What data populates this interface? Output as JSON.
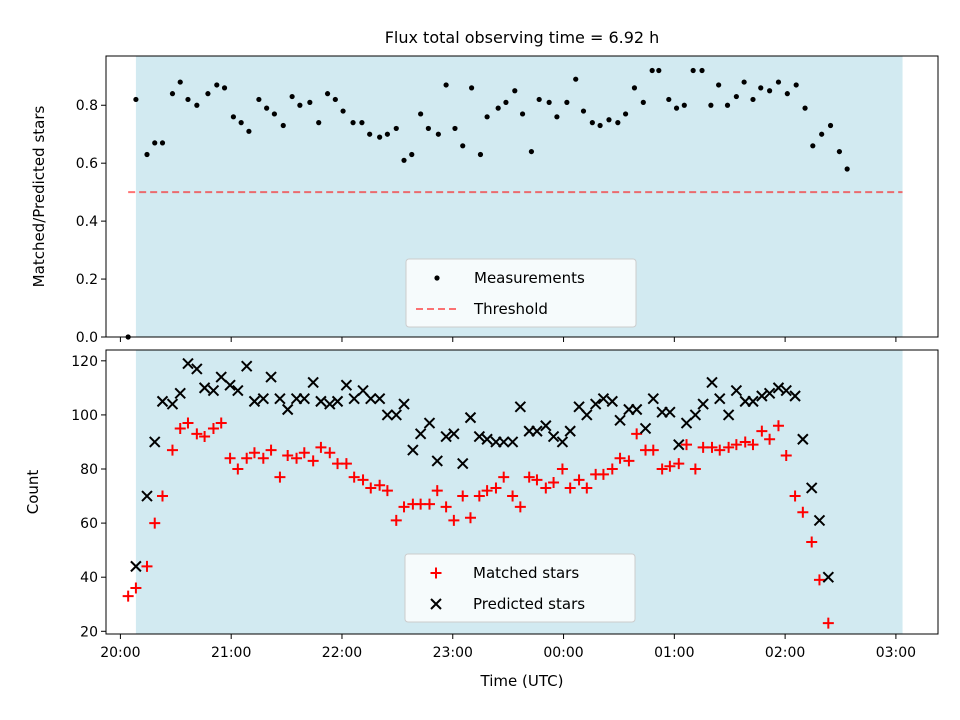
{
  "title": "Flux total observing time = 6.92 h",
  "colors": {
    "background_band": "#add8e6",
    "measurements": "#000000",
    "threshold": "#ff0000",
    "matched": "#ff0000",
    "predicted": "#000000"
  },
  "chart_data": [
    {
      "type": "scatter",
      "name": "ratio-panel",
      "ylabel": "Matched/Predicted stars",
      "xlim": [
        19.87,
        27.38
      ],
      "ylim": [
        0,
        0.97
      ],
      "yticks": [
        0.0,
        0.2,
        0.4,
        0.6,
        0.8
      ],
      "ytick_labels": [
        "0.0",
        "0.2",
        "0.4",
        "0.6",
        "0.8"
      ],
      "observing_window": [
        20.14,
        27.06
      ],
      "threshold": {
        "label": "Threshold",
        "value": 0.5,
        "x_range": [
          20.07,
          27.06
        ],
        "style": "dashed"
      },
      "legend": {
        "position": "lower center",
        "entries": [
          "Measurements",
          "Threshold"
        ]
      },
      "series": [
        {
          "name": "Measurements",
          "marker": "dot",
          "points": [
            [
              20.07,
              0.0
            ],
            [
              20.14,
              0.82
            ],
            [
              20.24,
              0.63
            ],
            [
              20.31,
              0.67
            ],
            [
              20.38,
              0.67
            ],
            [
              20.47,
              0.84
            ],
            [
              20.54,
              0.88
            ],
            [
              20.61,
              0.82
            ],
            [
              20.69,
              0.8
            ],
            [
              20.79,
              0.84
            ],
            [
              20.87,
              0.87
            ],
            [
              20.94,
              0.86
            ],
            [
              21.02,
              0.76
            ],
            [
              21.09,
              0.74
            ],
            [
              21.16,
              0.71
            ],
            [
              21.25,
              0.82
            ],
            [
              21.32,
              0.79
            ],
            [
              21.39,
              0.77
            ],
            [
              21.47,
              0.73
            ],
            [
              21.55,
              0.83
            ],
            [
              21.62,
              0.8
            ],
            [
              21.71,
              0.81
            ],
            [
              21.79,
              0.74
            ],
            [
              21.87,
              0.84
            ],
            [
              21.94,
              0.82
            ],
            [
              22.01,
              0.78
            ],
            [
              22.1,
              0.74
            ],
            [
              22.18,
              0.74
            ],
            [
              22.25,
              0.7
            ],
            [
              22.34,
              0.69
            ],
            [
              22.41,
              0.7
            ],
            [
              22.49,
              0.72
            ],
            [
              22.56,
              0.61
            ],
            [
              22.63,
              0.63
            ],
            [
              22.71,
              0.77
            ],
            [
              22.78,
              0.72
            ],
            [
              22.87,
              0.7
            ],
            [
              22.94,
              0.87
            ],
            [
              23.02,
              0.72
            ],
            [
              23.09,
              0.66
            ],
            [
              23.17,
              0.86
            ],
            [
              23.25,
              0.63
            ],
            [
              23.31,
              0.76
            ],
            [
              23.41,
              0.79
            ],
            [
              23.48,
              0.81
            ],
            [
              23.56,
              0.85
            ],
            [
              23.63,
              0.77
            ],
            [
              23.71,
              0.64
            ],
            [
              23.78,
              0.82
            ],
            [
              23.87,
              0.81
            ],
            [
              23.94,
              0.76
            ],
            [
              24.03,
              0.81
            ],
            [
              24.11,
              0.89
            ],
            [
              24.18,
              0.78
            ],
            [
              24.26,
              0.74
            ],
            [
              24.33,
              0.73
            ],
            [
              24.41,
              0.75
            ],
            [
              24.49,
              0.74
            ],
            [
              24.56,
              0.77
            ],
            [
              24.64,
              0.86
            ],
            [
              24.72,
              0.81
            ],
            [
              24.8,
              0.92
            ],
            [
              24.86,
              0.92
            ],
            [
              24.95,
              0.82
            ],
            [
              25.02,
              0.79
            ],
            [
              25.09,
              0.8
            ],
            [
              25.17,
              0.92
            ],
            [
              25.25,
              0.92
            ],
            [
              25.33,
              0.8
            ],
            [
              25.4,
              0.87
            ],
            [
              25.48,
              0.8
            ],
            [
              25.56,
              0.83
            ],
            [
              25.63,
              0.88
            ],
            [
              25.71,
              0.82
            ],
            [
              25.78,
              0.86
            ],
            [
              25.86,
              0.85
            ],
            [
              25.94,
              0.88
            ],
            [
              26.02,
              0.84
            ],
            [
              26.1,
              0.87
            ],
            [
              26.18,
              0.79
            ],
            [
              26.25,
              0.66
            ],
            [
              26.33,
              0.7
            ],
            [
              26.41,
              0.73
            ],
            [
              26.49,
              0.64
            ],
            [
              26.56,
              0.58
            ]
          ]
        }
      ]
    },
    {
      "type": "scatter",
      "name": "count-panel",
      "ylabel": "Count",
      "xlabel": "Time (UTC)",
      "xlim": [
        19.87,
        27.38
      ],
      "ylim": [
        19,
        124
      ],
      "yticks": [
        20,
        40,
        60,
        80,
        100,
        120
      ],
      "ytick_labels": [
        "20",
        "40",
        "60",
        "80",
        "100",
        "120"
      ],
      "xticks": [
        20,
        21,
        22,
        23,
        24,
        25,
        26,
        27
      ],
      "xtick_labels": [
        "20:00",
        "21:00",
        "22:00",
        "23:00",
        "00:00",
        "01:00",
        "02:00",
        "03:00"
      ],
      "observing_window": [
        20.14,
        27.06
      ],
      "legend": {
        "position": "lower center",
        "entries": [
          "Matched stars",
          "Predicted stars"
        ]
      },
      "series": [
        {
          "name": "Matched stars",
          "marker": "plus",
          "points": [
            [
              20.07,
              33
            ],
            [
              20.14,
              36
            ],
            [
              20.24,
              44
            ],
            [
              20.31,
              60
            ],
            [
              20.38,
              70
            ],
            [
              20.47,
              87
            ],
            [
              20.54,
              95
            ],
            [
              20.61,
              97
            ],
            [
              20.69,
              93
            ],
            [
              20.76,
              92
            ],
            [
              20.84,
              95
            ],
            [
              20.91,
              97
            ],
            [
              20.99,
              84
            ],
            [
              21.06,
              80
            ],
            [
              21.14,
              84
            ],
            [
              21.21,
              86
            ],
            [
              21.29,
              84
            ],
            [
              21.36,
              87
            ],
            [
              21.44,
              77
            ],
            [
              21.51,
              85
            ],
            [
              21.59,
              84
            ],
            [
              21.66,
              86
            ],
            [
              21.74,
              83
            ],
            [
              21.81,
              88
            ],
            [
              21.89,
              86
            ],
            [
              21.96,
              82
            ],
            [
              22.04,
              82
            ],
            [
              22.11,
              77
            ],
            [
              22.19,
              76
            ],
            [
              22.26,
              73
            ],
            [
              22.34,
              74
            ],
            [
              22.41,
              72
            ],
            [
              22.49,
              61
            ],
            [
              22.56,
              66
            ],
            [
              22.64,
              67
            ],
            [
              22.71,
              67
            ],
            [
              22.79,
              67
            ],
            [
              22.86,
              72
            ],
            [
              22.94,
              66
            ],
            [
              23.01,
              61
            ],
            [
              23.09,
              70
            ],
            [
              23.16,
              62
            ],
            [
              23.24,
              70
            ],
            [
              23.31,
              72
            ],
            [
              23.39,
              73
            ],
            [
              23.46,
              77
            ],
            [
              23.54,
              70
            ],
            [
              23.61,
              66
            ],
            [
              23.69,
              77
            ],
            [
              23.76,
              76
            ],
            [
              23.84,
              73
            ],
            [
              23.91,
              75
            ],
            [
              23.99,
              80
            ],
            [
              24.06,
              73
            ],
            [
              24.14,
              76
            ],
            [
              24.21,
              73
            ],
            [
              24.29,
              78
            ],
            [
              24.36,
              78
            ],
            [
              24.44,
              80
            ],
            [
              24.51,
              84
            ],
            [
              24.59,
              83
            ],
            [
              24.66,
              93
            ],
            [
              24.74,
              87
            ],
            [
              24.81,
              87
            ],
            [
              24.89,
              80
            ],
            [
              24.96,
              81
            ],
            [
              25.04,
              82
            ],
            [
              25.11,
              89
            ],
            [
              25.19,
              80
            ],
            [
              25.26,
              88
            ],
            [
              25.34,
              88
            ],
            [
              25.41,
              87
            ],
            [
              25.49,
              88
            ],
            [
              25.56,
              89
            ],
            [
              25.64,
              90
            ],
            [
              25.71,
              89
            ],
            [
              25.79,
              94
            ],
            [
              25.86,
              91
            ],
            [
              25.94,
              96
            ],
            [
              26.01,
              85
            ],
            [
              26.09,
              70
            ],
            [
              26.16,
              64
            ],
            [
              26.24,
              53
            ],
            [
              26.31,
              39
            ],
            [
              26.39,
              23
            ]
          ]
        },
        {
          "name": "Predicted stars",
          "marker": "x",
          "points": [
            [
              20.14,
              44
            ],
            [
              20.24,
              70
            ],
            [
              20.31,
              90
            ],
            [
              20.38,
              105
            ],
            [
              20.47,
              104
            ],
            [
              20.54,
              108
            ],
            [
              20.61,
              119
            ],
            [
              20.69,
              117
            ],
            [
              20.76,
              110
            ],
            [
              20.84,
              109
            ],
            [
              20.91,
              114
            ],
            [
              20.99,
              111
            ],
            [
              21.06,
              109
            ],
            [
              21.14,
              118
            ],
            [
              21.21,
              105
            ],
            [
              21.29,
              106
            ],
            [
              21.36,
              114
            ],
            [
              21.44,
              106
            ],
            [
              21.51,
              102
            ],
            [
              21.59,
              106
            ],
            [
              21.66,
              106
            ],
            [
              21.74,
              112
            ],
            [
              21.81,
              105
            ],
            [
              21.89,
              104
            ],
            [
              21.96,
              105
            ],
            [
              22.04,
              111
            ],
            [
              22.11,
              106
            ],
            [
              22.19,
              109
            ],
            [
              22.26,
              106
            ],
            [
              22.34,
              106
            ],
            [
              22.41,
              100
            ],
            [
              22.49,
              100
            ],
            [
              22.56,
              104
            ],
            [
              22.64,
              87
            ],
            [
              22.71,
              93
            ],
            [
              22.79,
              97
            ],
            [
              22.86,
              83
            ],
            [
              22.94,
              92
            ],
            [
              23.01,
              93
            ],
            [
              23.09,
              82
            ],
            [
              23.16,
              99
            ],
            [
              23.24,
              92
            ],
            [
              23.31,
              91
            ],
            [
              23.39,
              90
            ],
            [
              23.46,
              90
            ],
            [
              23.54,
              90
            ],
            [
              23.61,
              103
            ],
            [
              23.69,
              94
            ],
            [
              23.76,
              94
            ],
            [
              23.84,
              96
            ],
            [
              23.91,
              92
            ],
            [
              23.99,
              90
            ],
            [
              24.06,
              94
            ],
            [
              24.14,
              103
            ],
            [
              24.21,
              100
            ],
            [
              24.29,
              104
            ],
            [
              24.36,
              106
            ],
            [
              24.44,
              105
            ],
            [
              24.51,
              98
            ],
            [
              24.59,
              102
            ],
            [
              24.66,
              102
            ],
            [
              24.74,
              95
            ],
            [
              24.81,
              106
            ],
            [
              24.89,
              101
            ],
            [
              24.96,
              101
            ],
            [
              25.04,
              89
            ],
            [
              25.11,
              97
            ],
            [
              25.19,
              100
            ],
            [
              25.26,
              104
            ],
            [
              25.34,
              112
            ],
            [
              25.41,
              106
            ],
            [
              25.49,
              100
            ],
            [
              25.56,
              109
            ],
            [
              25.64,
              105
            ],
            [
              25.71,
              105
            ],
            [
              25.79,
              107
            ],
            [
              25.86,
              108
            ],
            [
              25.94,
              110
            ],
            [
              26.01,
              109
            ],
            [
              26.09,
              107
            ],
            [
              26.16,
              91
            ],
            [
              26.24,
              73
            ],
            [
              26.31,
              61
            ],
            [
              26.39,
              40
            ]
          ]
        }
      ]
    }
  ]
}
